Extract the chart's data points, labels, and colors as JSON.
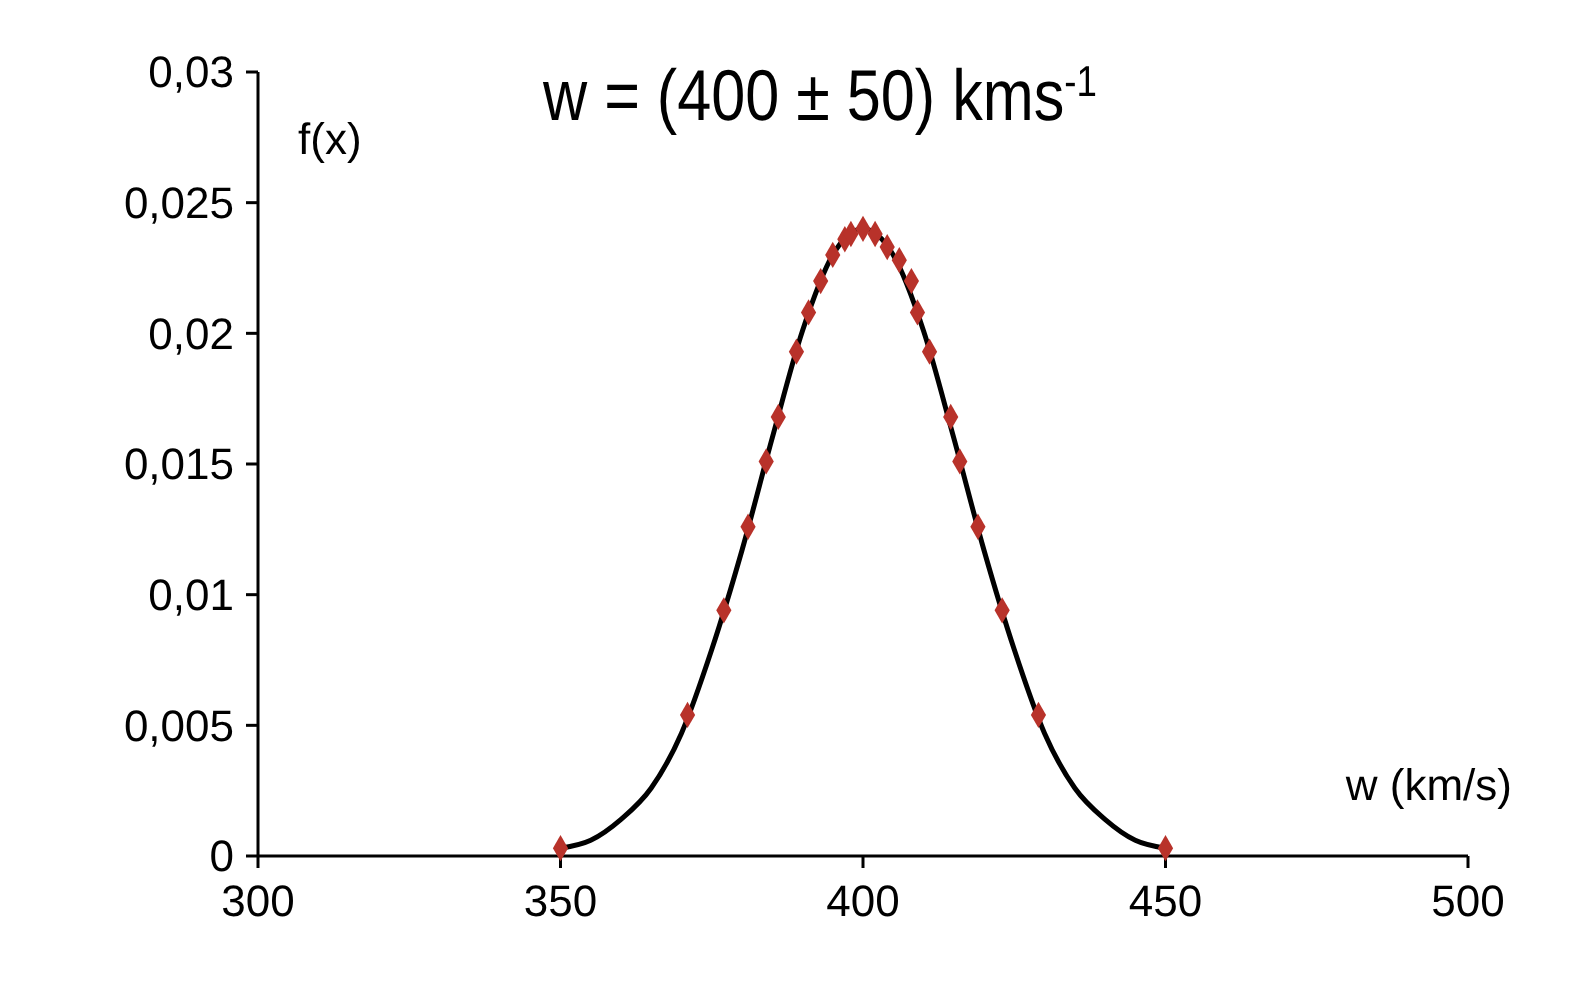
{
  "chart_data": {
    "type": "line",
    "title": "w = (400 ± 50) kms$^{-1}$",
    "xlabel": "w (km/s)",
    "ylabel": "f(x)",
    "xlim": [
      300,
      500
    ],
    "xticks": [
      300,
      350,
      400,
      450,
      500
    ],
    "ylim": [
      0,
      0.03
    ],
    "yticks": [
      0,
      {
        "value": 0.005,
        "label": "0,005"
      },
      {
        "value": 0.01,
        "label": "0,01"
      },
      {
        "value": 0.015,
        "label": "0,015"
      },
      {
        "value": 0.02,
        "label": "0,02"
      },
      {
        "value": 0.025,
        "label": "0,025"
      },
      {
        "value": 0.03,
        "label": "0,03"
      }
    ],
    "grid": false,
    "series": [
      {
        "color": "#000000",
        "marker": "none",
        "line_style": "solid",
        "x": [
          350,
          355,
          360,
          365,
          370,
          375,
          380,
          385,
          390,
          395,
          400,
          405,
          410,
          415,
          420,
          425,
          430,
          435,
          440,
          445,
          450
        ],
        "values": [
          0.0003,
          0.0006,
          0.0014,
          0.0026,
          0.0047,
          0.0079,
          0.0117,
          0.016,
          0.0201,
          0.023,
          0.024,
          0.023,
          0.0201,
          0.016,
          0.0117,
          0.0079,
          0.0047,
          0.0026,
          0.0014,
          0.0006,
          0.0003
        ]
      },
      {
        "type": "scatter",
        "color": "#b8322a",
        "marker": "diamond",
        "x": [
          350,
          371,
          377,
          381,
          384,
          386,
          389,
          391,
          393,
          395,
          397,
          398,
          400,
          402,
          404,
          406,
          408,
          409,
          411,
          414.5,
          416,
          419,
          423,
          429,
          450
        ],
        "values": [
          0.0003,
          0.0054,
          0.0094,
          0.0126,
          0.0151,
          0.0168,
          0.0193,
          0.0208,
          0.022,
          0.023,
          0.0236,
          0.0238,
          0.024,
          0.0238,
          0.0233,
          0.0228,
          0.022,
          0.0208,
          0.0193,
          0.0168,
          0.0151,
          0.0126,
          0.0094,
          0.0054,
          0.0003
        ]
      }
    ]
  }
}
